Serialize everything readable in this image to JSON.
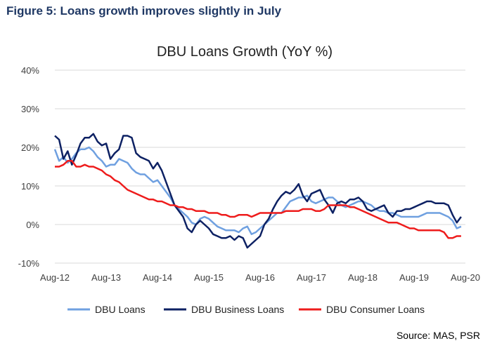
{
  "figure_title": "Figure 5: Loans growth improves slightly in July",
  "source": "Source: MAS, PSR",
  "chart_data": {
    "type": "line",
    "title": "DBU Loans Growth (YoY %)",
    "xlabel": "",
    "ylabel": "",
    "ylim": [
      -10,
      40
    ],
    "yticks": [
      -10,
      0,
      10,
      20,
      30,
      40
    ],
    "ytick_labels": [
      "-10%",
      "0%",
      "10%",
      "20%",
      "30%",
      "40%"
    ],
    "x_tick_labels": [
      "Aug-12",
      "Aug-13",
      "Aug-14",
      "Aug-15",
      "Aug-16",
      "Aug-17",
      "Aug-18",
      "Aug-19",
      "Aug-20"
    ],
    "x_start": "Aug-12",
    "x_end": "Aug-20",
    "grid": "horizontal",
    "legend_position": "bottom",
    "series": [
      {
        "name": "DBU Loans",
        "color": "#6fa0e0",
        "points": [
          [
            0,
            19.5
          ],
          [
            1,
            16.5
          ],
          [
            2,
            17.5
          ],
          [
            3,
            16
          ],
          [
            4,
            17
          ],
          [
            5,
            18.5
          ],
          [
            6,
            19.5
          ],
          [
            7,
            19.5
          ],
          [
            8,
            20
          ],
          [
            9,
            19
          ],
          [
            10,
            17.5
          ],
          [
            11,
            16.5
          ],
          [
            12,
            15
          ],
          [
            13,
            15.5
          ],
          [
            14,
            15.5
          ],
          [
            15,
            17
          ],
          [
            16,
            16.5
          ],
          [
            17,
            16
          ],
          [
            18,
            14.5
          ],
          [
            19,
            13.5
          ],
          [
            20,
            13
          ],
          [
            21,
            13
          ],
          [
            22,
            12
          ],
          [
            23,
            11
          ],
          [
            24,
            11.5
          ],
          [
            25,
            10
          ],
          [
            26,
            8.5
          ],
          [
            27,
            7
          ],
          [
            28,
            5
          ],
          [
            29,
            4
          ],
          [
            30,
            3
          ],
          [
            31,
            2
          ],
          [
            32,
            0.5
          ],
          [
            33,
            0
          ],
          [
            34,
            1.5
          ],
          [
            35,
            2
          ],
          [
            36,
            1.5
          ],
          [
            37,
            0.5
          ],
          [
            38,
            -0.5
          ],
          [
            39,
            -1
          ],
          [
            40,
            -1.5
          ],
          [
            41,
            -1.5
          ],
          [
            42,
            -1.5
          ],
          [
            43,
            -2
          ],
          [
            44,
            -1
          ],
          [
            45,
            -0.5
          ],
          [
            46,
            -2.5
          ],
          [
            47,
            -2
          ],
          [
            48,
            -1
          ],
          [
            49,
            0
          ],
          [
            50,
            1
          ],
          [
            51,
            2
          ],
          [
            52,
            3
          ],
          [
            53,
            3
          ],
          [
            54,
            4.5
          ],
          [
            55,
            6
          ],
          [
            56,
            6.5
          ],
          [
            57,
            7
          ],
          [
            58,
            7
          ],
          [
            59,
            7.5
          ],
          [
            60,
            6
          ],
          [
            61,
            5.5
          ],
          [
            62,
            6
          ],
          [
            63,
            6.5
          ],
          [
            64,
            7
          ],
          [
            65,
            7
          ],
          [
            66,
            6
          ],
          [
            67,
            5
          ],
          [
            68,
            4.5
          ],
          [
            69,
            5
          ],
          [
            70,
            5.5
          ],
          [
            71,
            6
          ],
          [
            72,
            6
          ],
          [
            73,
            5.5
          ],
          [
            74,
            5
          ],
          [
            75,
            4
          ],
          [
            76,
            3.5
          ],
          [
            77,
            3.5
          ],
          [
            78,
            3
          ],
          [
            79,
            3
          ],
          [
            80,
            2.5
          ],
          [
            81,
            2
          ],
          [
            82,
            2
          ],
          [
            83,
            2
          ],
          [
            84,
            2
          ],
          [
            85,
            2
          ],
          [
            86,
            2.5
          ],
          [
            87,
            3
          ],
          [
            88,
            3
          ],
          [
            89,
            3
          ],
          [
            90,
            3
          ],
          [
            91,
            2.5
          ],
          [
            92,
            2
          ],
          [
            93,
            1
          ],
          [
            94,
            -1
          ],
          [
            95,
            -0.5
          ]
        ]
      },
      {
        "name": "DBU Business Loans",
        "color": "#0d2163",
        "points": [
          [
            0,
            23
          ],
          [
            1,
            22
          ],
          [
            2,
            17
          ],
          [
            3,
            19
          ],
          [
            4,
            15.5
          ],
          [
            5,
            18
          ],
          [
            6,
            21
          ],
          [
            7,
            22.5
          ],
          [
            8,
            22.5
          ],
          [
            9,
            23.5
          ],
          [
            10,
            21.5
          ],
          [
            11,
            20.5
          ],
          [
            12,
            21
          ],
          [
            13,
            17
          ],
          [
            14,
            18.5
          ],
          [
            15,
            19.5
          ],
          [
            16,
            23
          ],
          [
            17,
            23
          ],
          [
            18,
            22.5
          ],
          [
            19,
            18.5
          ],
          [
            20,
            17.5
          ],
          [
            21,
            17
          ],
          [
            22,
            16.5
          ],
          [
            23,
            14.5
          ],
          [
            24,
            16
          ],
          [
            25,
            14
          ],
          [
            26,
            11
          ],
          [
            27,
            8
          ],
          [
            28,
            5
          ],
          [
            29,
            3.5
          ],
          [
            30,
            2
          ],
          [
            31,
            -1
          ],
          [
            32,
            -2
          ],
          [
            33,
            0
          ],
          [
            34,
            1
          ],
          [
            35,
            0
          ],
          [
            36,
            -1
          ],
          [
            37,
            -2.5
          ],
          [
            38,
            -3
          ],
          [
            39,
            -3.5
          ],
          [
            40,
            -3.5
          ],
          [
            41,
            -3
          ],
          [
            42,
            -4
          ],
          [
            43,
            -3
          ],
          [
            44,
            -3.5
          ],
          [
            45,
            -6
          ],
          [
            46,
            -5
          ],
          [
            47,
            -4
          ],
          [
            48,
            -3
          ],
          [
            49,
            0
          ],
          [
            50,
            1.5
          ],
          [
            51,
            4
          ],
          [
            52,
            6
          ],
          [
            53,
            7.5
          ],
          [
            54,
            8.5
          ],
          [
            55,
            8
          ],
          [
            56,
            9
          ],
          [
            57,
            10.5
          ],
          [
            58,
            7.5
          ],
          [
            59,
            6
          ],
          [
            60,
            8
          ],
          [
            61,
            8.5
          ],
          [
            62,
            9
          ],
          [
            63,
            6.5
          ],
          [
            64,
            5
          ],
          [
            65,
            3
          ],
          [
            66,
            5.5
          ],
          [
            67,
            6
          ],
          [
            68,
            5.5
          ],
          [
            69,
            6.5
          ],
          [
            70,
            6.5
          ],
          [
            71,
            7
          ],
          [
            72,
            6
          ],
          [
            73,
            4
          ],
          [
            74,
            3.5
          ],
          [
            75,
            4
          ],
          [
            76,
            4.5
          ],
          [
            77,
            5
          ],
          [
            78,
            3
          ],
          [
            79,
            2
          ],
          [
            80,
            3.5
          ],
          [
            81,
            3.5
          ],
          [
            82,
            4
          ],
          [
            83,
            4
          ],
          [
            84,
            4.5
          ],
          [
            85,
            5
          ],
          [
            86,
            5.5
          ],
          [
            87,
            6
          ],
          [
            88,
            6
          ],
          [
            89,
            5.5
          ],
          [
            90,
            5.5
          ],
          [
            91,
            5.5
          ],
          [
            92,
            5
          ],
          [
            93,
            2.5
          ],
          [
            94,
            0.5
          ],
          [
            95,
            2
          ]
        ]
      },
      {
        "name": "DBU Consumer Loans",
        "color": "#ee1c1c",
        "points": [
          [
            0,
            15
          ],
          [
            1,
            15
          ],
          [
            2,
            15.5
          ],
          [
            3,
            16.5
          ],
          [
            4,
            16.5
          ],
          [
            5,
            15
          ],
          [
            6,
            15
          ],
          [
            7,
            15.5
          ],
          [
            8,
            15
          ],
          [
            9,
            15
          ],
          [
            10,
            14.5
          ],
          [
            11,
            14
          ],
          [
            12,
            13
          ],
          [
            13,
            12.5
          ],
          [
            14,
            11.5
          ],
          [
            15,
            11
          ],
          [
            16,
            10
          ],
          [
            17,
            9
          ],
          [
            18,
            8.5
          ],
          [
            19,
            8
          ],
          [
            20,
            7.5
          ],
          [
            21,
            7
          ],
          [
            22,
            6.5
          ],
          [
            23,
            6.5
          ],
          [
            24,
            6
          ],
          [
            25,
            6
          ],
          [
            26,
            5.5
          ],
          [
            27,
            5
          ],
          [
            28,
            5
          ],
          [
            29,
            4.5
          ],
          [
            30,
            4.5
          ],
          [
            31,
            4
          ],
          [
            32,
            4
          ],
          [
            33,
            3.5
          ],
          [
            34,
            3.5
          ],
          [
            35,
            3.5
          ],
          [
            36,
            3
          ],
          [
            37,
            3
          ],
          [
            38,
            3
          ],
          [
            39,
            2.5
          ],
          [
            40,
            2.5
          ],
          [
            41,
            2
          ],
          [
            42,
            2
          ],
          [
            43,
            2.5
          ],
          [
            44,
            2.5
          ],
          [
            45,
            2.5
          ],
          [
            46,
            2
          ],
          [
            47,
            2.5
          ],
          [
            48,
            3
          ],
          [
            49,
            3
          ],
          [
            50,
            3
          ],
          [
            51,
            3
          ],
          [
            52,
            3
          ],
          [
            53,
            3
          ],
          [
            54,
            3.5
          ],
          [
            55,
            3.5
          ],
          [
            56,
            3.5
          ],
          [
            57,
            3.5
          ],
          [
            58,
            4
          ],
          [
            59,
            4
          ],
          [
            60,
            4
          ],
          [
            61,
            3.5
          ],
          [
            62,
            3.5
          ],
          [
            63,
            4
          ],
          [
            64,
            5
          ],
          [
            65,
            5
          ],
          [
            66,
            5
          ],
          [
            67,
            5
          ],
          [
            68,
            5
          ],
          [
            69,
            4.5
          ],
          [
            70,
            4.5
          ],
          [
            71,
            4
          ],
          [
            72,
            3.5
          ],
          [
            73,
            3
          ],
          [
            74,
            2.5
          ],
          [
            75,
            2
          ],
          [
            76,
            1.5
          ],
          [
            77,
            1
          ],
          [
            78,
            0.5
          ],
          [
            79,
            0.5
          ],
          [
            80,
            0.5
          ],
          [
            81,
            0
          ],
          [
            82,
            -0.5
          ],
          [
            83,
            -1
          ],
          [
            84,
            -1
          ],
          [
            85,
            -1.5
          ],
          [
            86,
            -1.5
          ],
          [
            87,
            -1.5
          ],
          [
            88,
            -1.5
          ],
          [
            89,
            -1.5
          ],
          [
            90,
            -1.5
          ],
          [
            91,
            -2
          ],
          [
            92,
            -3.5
          ],
          [
            93,
            -3.5
          ],
          [
            94,
            -3
          ],
          [
            95,
            -3
          ]
        ]
      }
    ]
  }
}
